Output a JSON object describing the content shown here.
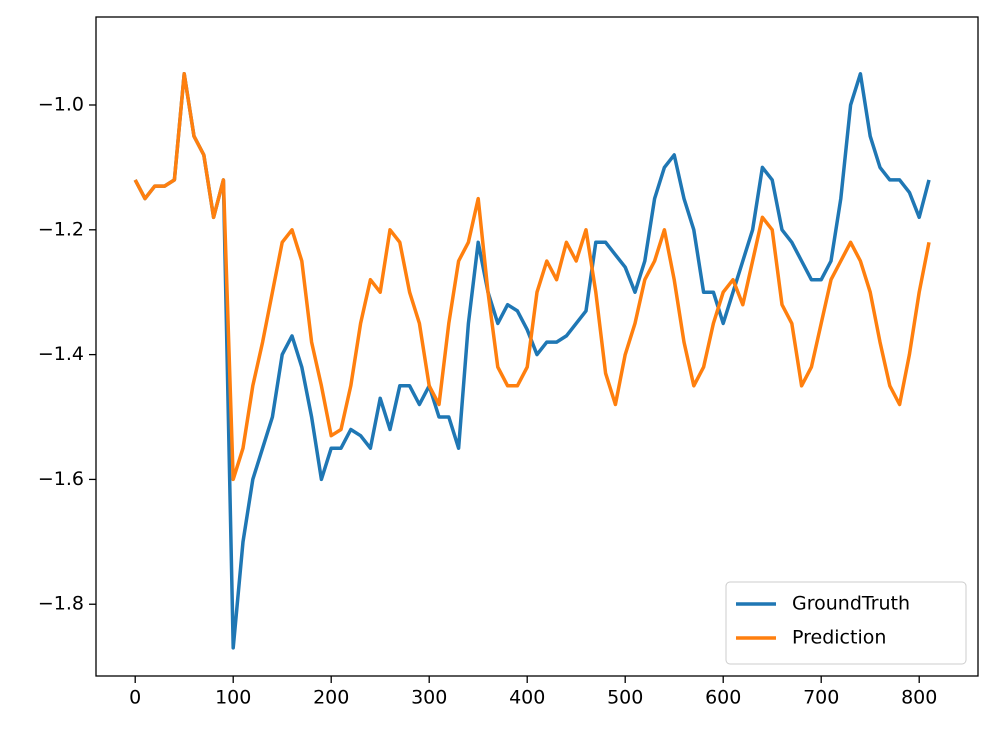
{
  "chart_data": {
    "type": "line",
    "x": [
      0,
      10,
      20,
      30,
      40,
      50,
      60,
      70,
      80,
      90,
      100,
      110,
      120,
      130,
      140,
      150,
      160,
      170,
      180,
      190,
      200,
      210,
      220,
      230,
      240,
      250,
      260,
      270,
      280,
      290,
      300,
      310,
      320,
      330,
      340,
      350,
      360,
      370,
      380,
      390,
      400,
      410,
      420,
      430,
      440,
      450,
      460,
      470,
      480,
      490,
      500,
      510,
      520,
      530,
      540,
      550,
      560,
      570,
      580,
      590,
      600,
      610,
      620,
      630,
      640,
      650,
      660,
      670,
      680,
      690,
      700,
      710,
      720,
      730,
      740,
      750,
      760,
      770,
      780,
      790,
      800,
      810
    ],
    "series": [
      {
        "name": "GroundTruth",
        "color": "#1f77b4",
        "values": [
          -1.12,
          -1.15,
          -1.13,
          -1.13,
          -1.12,
          -0.95,
          -1.05,
          -1.08,
          -1.18,
          -1.12,
          -1.87,
          -1.7,
          -1.6,
          -1.55,
          -1.5,
          -1.4,
          -1.37,
          -1.42,
          -1.5,
          -1.6,
          -1.55,
          -1.55,
          -1.52,
          -1.53,
          -1.55,
          -1.47,
          -1.52,
          -1.45,
          -1.45,
          -1.48,
          -1.45,
          -1.5,
          -1.5,
          -1.55,
          -1.35,
          -1.22,
          -1.3,
          -1.35,
          -1.32,
          -1.33,
          -1.36,
          -1.4,
          -1.38,
          -1.38,
          -1.37,
          -1.35,
          -1.33,
          -1.22,
          -1.22,
          -1.24,
          -1.26,
          -1.3,
          -1.25,
          -1.15,
          -1.1,
          -1.08,
          -1.15,
          -1.2,
          -1.3,
          -1.3,
          -1.35,
          -1.3,
          -1.25,
          -1.2,
          -1.1,
          -1.12,
          -1.2,
          -1.22,
          -1.25,
          -1.28,
          -1.28,
          -1.25,
          -1.15,
          -1.0,
          -0.95,
          -1.05,
          -1.1,
          -1.12,
          -1.12,
          -1.14,
          -1.18,
          -1.12
        ]
      },
      {
        "name": "Prediction",
        "color": "#ff7f0e",
        "values": [
          -1.12,
          -1.15,
          -1.13,
          -1.13,
          -1.12,
          -0.95,
          -1.05,
          -1.08,
          -1.18,
          -1.12,
          -1.6,
          -1.55,
          -1.45,
          -1.38,
          -1.3,
          -1.22,
          -1.2,
          -1.25,
          -1.38,
          -1.45,
          -1.53,
          -1.52,
          -1.45,
          -1.35,
          -1.28,
          -1.3,
          -1.2,
          -1.22,
          -1.3,
          -1.35,
          -1.45,
          -1.48,
          -1.35,
          -1.25,
          -1.22,
          -1.15,
          -1.3,
          -1.42,
          -1.45,
          -1.45,
          -1.42,
          -1.3,
          -1.25,
          -1.28,
          -1.22,
          -1.25,
          -1.2,
          -1.3,
          -1.43,
          -1.48,
          -1.4,
          -1.35,
          -1.28,
          -1.25,
          -1.2,
          -1.28,
          -1.38,
          -1.45,
          -1.42,
          -1.35,
          -1.3,
          -1.28,
          -1.32,
          -1.25,
          -1.18,
          -1.2,
          -1.32,
          -1.35,
          -1.45,
          -1.42,
          -1.35,
          -1.28,
          -1.25,
          -1.22,
          -1.25,
          -1.3,
          -1.38,
          -1.45,
          -1.48,
          -1.4,
          -1.3,
          -1.22
        ]
      }
    ],
    "xlim": [
      -40,
      860
    ],
    "ylim": [
      -1.915,
      -0.859
    ],
    "xticks": [
      0,
      100,
      200,
      300,
      400,
      500,
      600,
      700,
      800
    ],
    "yticks": [
      {
        "value": -1.8,
        "label": "−1.8"
      },
      {
        "value": -1.6,
        "label": "−1.6"
      },
      {
        "value": -1.4,
        "label": "−1.4"
      },
      {
        "value": -1.2,
        "label": "−1.2"
      },
      {
        "value": -1.0,
        "label": "−1.0"
      }
    ],
    "grid": false,
    "legend": "lower right"
  }
}
